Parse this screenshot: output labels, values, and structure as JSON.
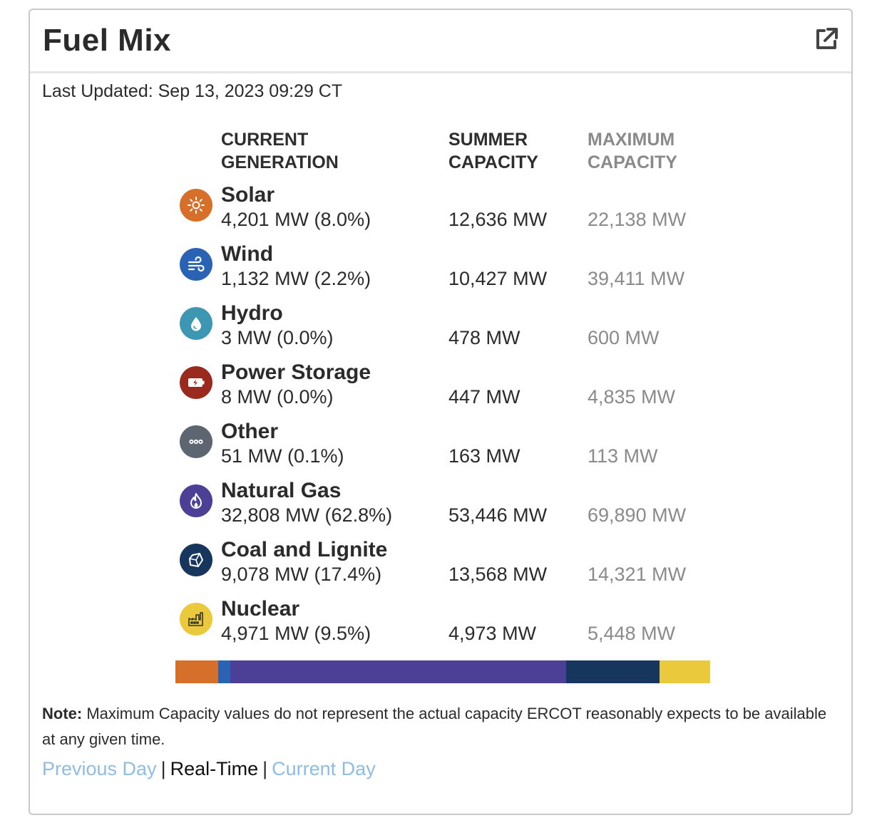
{
  "title": "Fuel Mix",
  "last_updated": "Last Updated: Sep 13, 2023 09:29 CT",
  "headers": {
    "current_line1": "CURRENT",
    "current_line2": "GENERATION",
    "summer_line1": "SUMMER",
    "summer_line2": "CAPACITY",
    "max_line1": "MAXIMUM",
    "max_line2": "CAPACITY"
  },
  "fuels": [
    {
      "name": "Solar",
      "generation": "4,201 MW (8.0%)",
      "summer": "12,636 MW",
      "max": "22,138 MW",
      "color": "#d66f2a",
      "icon": "sun-icon"
    },
    {
      "name": "Wind",
      "generation": "1,132 MW (2.2%)",
      "summer": "10,427 MW",
      "max": "39,411 MW",
      "color": "#2a62b4",
      "icon": "wind-icon"
    },
    {
      "name": "Hydro",
      "generation": "3 MW (0.0%)",
      "summer": "478 MW",
      "max": "600 MW",
      "color": "#3d97b3",
      "icon": "water-drop-icon"
    },
    {
      "name": "Power Storage",
      "generation": "8 MW (0.0%)",
      "summer": "447 MW",
      "max": "4,835 MW",
      "color": "#9a2a1e",
      "icon": "battery-icon"
    },
    {
      "name": "Other",
      "generation": "51 MW (0.1%)",
      "summer": "163 MW",
      "max": "113 MW",
      "color": "#5d6670",
      "icon": "ellipsis-icon"
    },
    {
      "name": "Natural Gas",
      "generation": "32,808 MW (62.8%)",
      "summer": "53,446 MW",
      "max": "69,890 MW",
      "color": "#4b3f96",
      "icon": "flame-icon"
    },
    {
      "name": "Coal and Lignite",
      "generation": "9,078 MW (17.4%)",
      "summer": "13,568 MW",
      "max": "14,321 MW",
      "color": "#17365e",
      "icon": "coal-icon"
    },
    {
      "name": "Nuclear",
      "generation": "4,971 MW (9.5%)",
      "summer": "4,973 MW",
      "max": "5,448 MW",
      "color": "#ebc93d",
      "icon": "power-plant-icon"
    }
  ],
  "mix_bar": [
    {
      "fuel": "Solar",
      "share": 8.0,
      "color": "#d66f2a"
    },
    {
      "fuel": "Wind",
      "share": 2.2,
      "color": "#2a62b4"
    },
    {
      "fuel": "Natural Gas",
      "share": 62.8,
      "color": "#4b3f96"
    },
    {
      "fuel": "Coal and Lignite",
      "share": 17.4,
      "color": "#17365e"
    },
    {
      "fuel": "Nuclear",
      "share": 9.5,
      "color": "#ebc93d"
    }
  ],
  "note_label": "Note:",
  "note_text": " Maximum Capacity values do not represent the actual capacity ERCOT reasonably expects to be available at any given time.",
  "links": {
    "previous": "Previous Day",
    "realtime": "Real-Time",
    "current": "Current Day",
    "separator": "|"
  }
}
